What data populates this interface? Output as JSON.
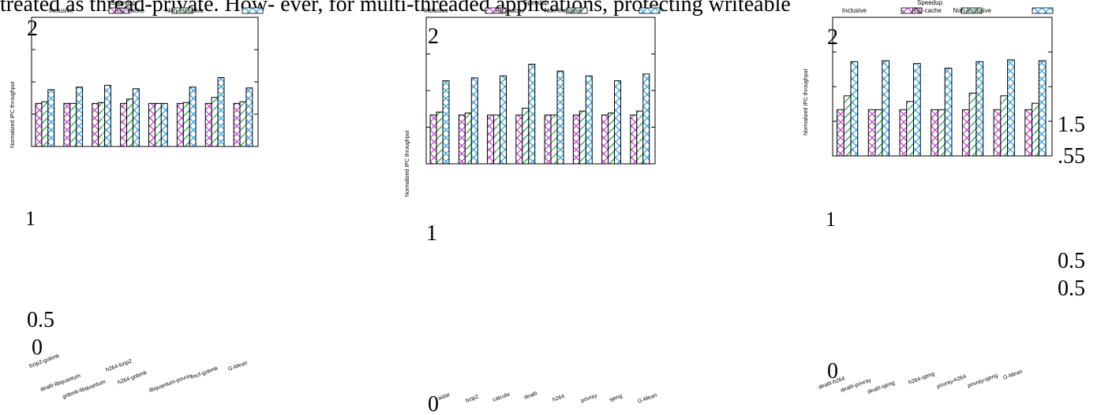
{
  "page_text": "treated as thread-private. How- ever, for multi-threaded applications, protecting writeable",
  "colors": {
    "inclusive": "#c040c8",
    "ric_cache": "#40b870",
    "non_inclusive": "#40a8e0",
    "frame": "#000000"
  },
  "chart_data": [
    {
      "type": "bar",
      "legend_title": "Speedup",
      "ylabel": "Normalized IPC throughput",
      "series": [
        {
          "name": "Inclusive",
          "values": [
            1.0,
            1.0,
            1.0,
            1.0,
            1.0,
            1.0,
            1.0,
            1.0
          ]
        },
        {
          "name": "RIC-cache",
          "values": [
            1.02,
            1.0,
            1.01,
            1.05,
            1.0,
            1.01,
            1.07,
            1.02
          ]
        },
        {
          "name": "Non-Inclusive",
          "values": [
            1.16,
            1.19,
            1.21,
            1.17,
            1.0,
            1.19,
            1.3,
            1.18
          ]
        }
      ],
      "categories": [
        "bzip2-gobmk",
        "dealII-libquantum",
        "gobmk-libquantum",
        "h264-bzip2",
        "h264-gobmk",
        "libquantum-povray",
        "mcf-gobmk",
        "G-Mean"
      ],
      "ylim": [
        0.5,
        2
      ],
      "tick_labels": [
        "2",
        "1",
        "0.5",
        "0"
      ]
    },
    {
      "type": "bar",
      "legend_title": "Speedup",
      "ylabel": "Normalized IPC throughput",
      "series": [
        {
          "name": "Inclusive",
          "values": [
            1.0,
            1.0,
            1.0,
            1.0,
            1.0,
            1.0,
            1.0,
            1.0
          ]
        },
        {
          "name": "RIC-cache",
          "values": [
            1.03,
            1.02,
            1.0,
            1.07,
            1.0,
            1.04,
            1.02,
            1.04
          ]
        },
        {
          "name": "Non-Inclusive",
          "values": [
            1.35,
            1.38,
            1.4,
            1.52,
            1.45,
            1.4,
            1.35,
            1.42
          ]
        }
      ],
      "categories": [
        "astar",
        "bzip2",
        "calculix",
        "dealII",
        "h264",
        "povray",
        "sjeng",
        "G-Mean"
      ],
      "ylim": [
        0.5,
        2
      ],
      "tick_labels": [
        "2",
        "1",
        "0"
      ]
    },
    {
      "type": "bar",
      "legend_title": "Speedup",
      "ylabel": "Normalized IPC throughput",
      "series": [
        {
          "name": "Inclusive",
          "values": [
            1.0,
            1.0,
            1.0,
            1.0,
            1.0,
            1.0,
            1.0
          ]
        },
        {
          "name": "RIC-cache",
          "values": [
            1.15,
            1.0,
            1.09,
            1.0,
            1.18,
            1.15,
            1.07
          ]
        },
        {
          "name": "Non-Inclusive",
          "values": [
            1.52,
            1.53,
            1.5,
            1.45,
            1.52,
            1.54,
            1.53
          ]
        }
      ],
      "categories": [
        "dealII-h264",
        "dealII-povray",
        "dealII-sjeng",
        "h264-sjeng",
        "povray-h264",
        "povray-sjeng",
        "G-Mean"
      ],
      "ylim": [
        0.5,
        2
      ],
      "tick_labels": [
        "2",
        "1",
        "0"
      ]
    }
  ],
  "stray_labels": [
    "1.5",
    ".55",
    "0.5",
    "0.5"
  ]
}
